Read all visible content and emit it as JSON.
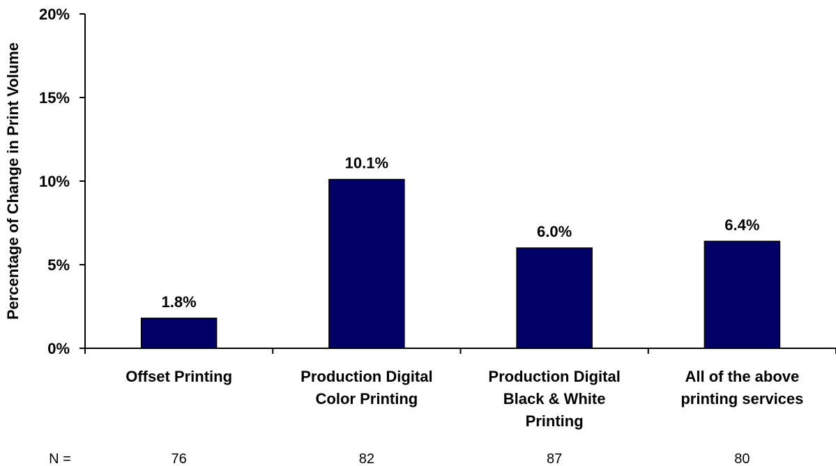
{
  "chart_data": {
    "type": "bar",
    "categories": [
      [
        "Offset Printing"
      ],
      [
        "Production Digital",
        "Color Printing"
      ],
      [
        "Production Digital",
        "Black & White",
        "Printing"
      ],
      [
        "All of the above",
        "printing services"
      ]
    ],
    "values": [
      1.8,
      10.1,
      6.0,
      6.4
    ],
    "data_labels": [
      "1.8%",
      "10.1%",
      "6.0%",
      "6.4%"
    ],
    "ylabel": "Percentage of Change in Print Volume",
    "ylim": [
      0,
      20
    ],
    "yticks": [
      0,
      5,
      10,
      15,
      20
    ],
    "ytick_labels": [
      "0%",
      "5%",
      "10%",
      "15%",
      "20%"
    ],
    "grid": false,
    "bar_color": "#000066",
    "n_label": "N =",
    "n_values": [
      "76",
      "82",
      "87",
      "80"
    ]
  }
}
